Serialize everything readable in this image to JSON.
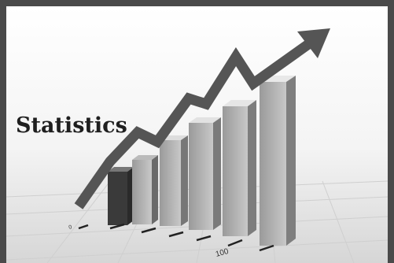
{
  "title": "Statistics",
  "axis_labels": [
    "0",
    "100"
  ]
}
